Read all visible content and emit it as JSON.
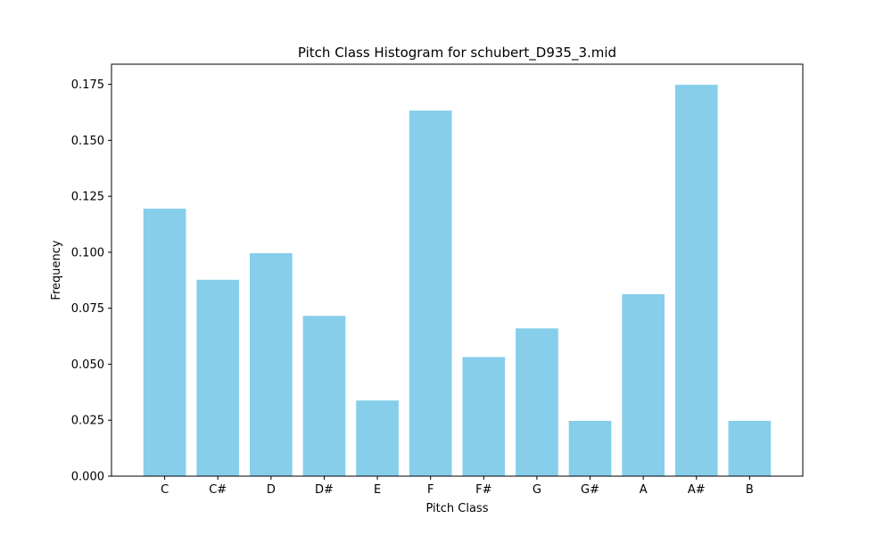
{
  "chart_data": {
    "type": "bar",
    "title": "Pitch Class Histogram for schubert_D935_3.mid",
    "xlabel": "Pitch Class",
    "ylabel": "Frequency",
    "categories": [
      "C",
      "C#",
      "D",
      "D#",
      "E",
      "F",
      "F#",
      "G",
      "G#",
      "A",
      "A#",
      "B"
    ],
    "values": [
      0.1195,
      0.0877,
      0.0996,
      0.0716,
      0.0338,
      0.1633,
      0.0532,
      0.066,
      0.0247,
      0.0813,
      0.1748,
      0.0247
    ],
    "ylim": [
      0,
      0.184
    ],
    "yticks": [
      "0.000",
      "0.025",
      "0.050",
      "0.075",
      "0.100",
      "0.125",
      "0.150",
      "0.175"
    ],
    "bar_color": "#87CEEB",
    "grid": false,
    "legend": false
  }
}
